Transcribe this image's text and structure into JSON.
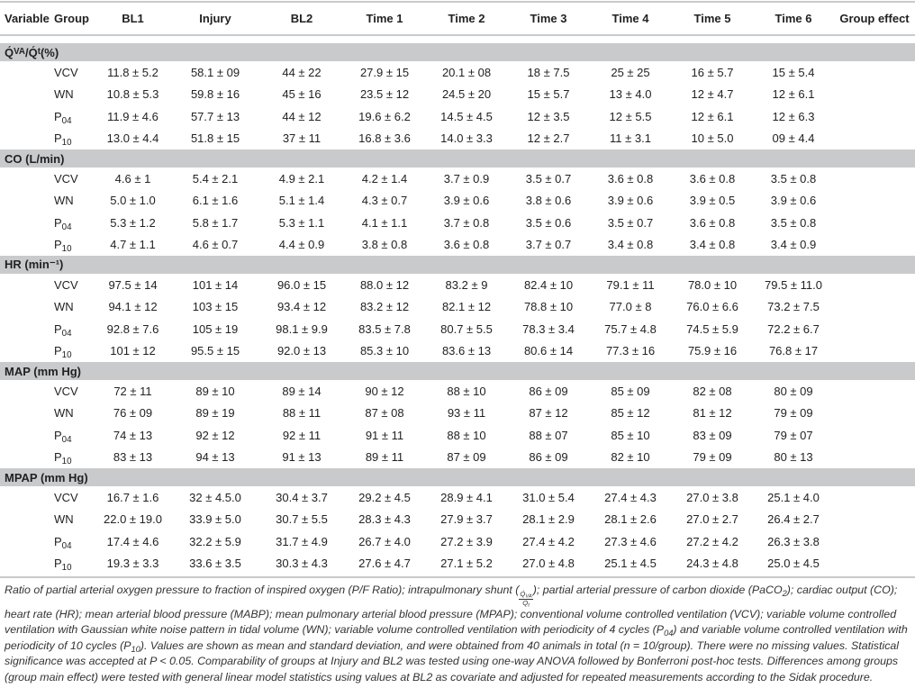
{
  "header": {
    "variable": "Variable",
    "group": "Group",
    "columns": [
      "BL1",
      "Injury",
      "BL2",
      "Time 1",
      "Time 2",
      "Time 3",
      "Time 4",
      "Time 5",
      "Time 6",
      "Group effect"
    ]
  },
  "section_band_color": "#c9cacc",
  "sections": [
    {
      "title": [
        {
          "t": "Q́"
        },
        {
          "sub": "VA"
        },
        {
          "t": "/Q́"
        },
        {
          "sub": "t"
        },
        {
          "t": " (%)"
        }
      ],
      "rows": [
        {
          "group": {
            "main": "VCV",
            "sub": ""
          },
          "values": [
            "11.8 ± 5.2",
            "58.1 ± 09",
            "44 ± 22",
            "27.9 ± 15",
            "20.1 ± 08",
            "18 ± 7.5",
            "25 ± 25",
            "16 ± 5.7",
            "15 ± 5.4",
            ""
          ]
        },
        {
          "group": {
            "main": "WN",
            "sub": ""
          },
          "values": [
            "10.8 ± 5.3",
            "59.8 ± 16",
            "45 ± 16",
            "23.5 ± 12",
            "24.5 ± 20",
            "15 ± 5.7",
            "13 ± 4.0",
            "12 ± 4.7",
            "12 ± 6.1",
            ""
          ]
        },
        {
          "group": {
            "main": "P",
            "sub": "04"
          },
          "values": [
            "11.9 ± 4.6",
            "57.7 ± 13",
            "44 ± 12",
            "19.6 ± 6.2",
            "14.5 ± 4.5",
            "12 ± 3.5",
            "12 ± 5.5",
            "12 ± 6.1",
            "12 ± 6.3",
            ""
          ]
        },
        {
          "group": {
            "main": "P",
            "sub": "10"
          },
          "values": [
            "13.0 ± 4.4",
            "51.8 ± 15",
            "37 ± 11",
            "16.8 ± 3.6",
            "14.0 ± 3.3",
            "12 ± 2.7",
            "11 ± 3.1",
            "10 ± 5.0",
            "09 ± 4.4",
            ""
          ]
        }
      ]
    },
    {
      "title": [
        {
          "t": "CO (L/min)"
        }
      ],
      "rows": [
        {
          "group": {
            "main": "VCV",
            "sub": ""
          },
          "values": [
            "4.6 ± 1",
            "5.4 ± 2.1",
            "4.9 ± 2.1",
            "4.2 ± 1.4",
            "3.7 ± 0.9",
            "3.5 ± 0.7",
            "3.6 ± 0.8",
            "3.6 ± 0.8",
            "3.5 ± 0.8",
            ""
          ]
        },
        {
          "group": {
            "main": "WN",
            "sub": ""
          },
          "values": [
            "5.0 ± 1.0",
            "6.1 ± 1.6",
            "5.1 ± 1.4",
            "4.3 ± 0.7",
            "3.9 ± 0.6",
            "3.8 ± 0.6",
            "3.9 ± 0.6",
            "3.9 ± 0.5",
            "3.9 ± 0.6",
            ""
          ]
        },
        {
          "group": {
            "main": "P",
            "sub": "04"
          },
          "values": [
            "5.3 ± 1.2",
            "5.8 ± 1.7",
            "5.3 ± 1.1",
            "4.1 ± 1.1",
            "3.7 ± 0.8",
            "3.5 ± 0.6",
            "3.5 ± 0.7",
            "3.6 ± 0.8",
            "3.5 ± 0.8",
            ""
          ]
        },
        {
          "group": {
            "main": "P",
            "sub": "10"
          },
          "values": [
            "4.7 ± 1.1",
            "4.6 ± 0.7",
            "4.4 ± 0.9",
            "3.8 ± 0.8",
            "3.6 ± 0.8",
            "3.7 ± 0.7",
            "3.4 ± 0.8",
            "3.4 ± 0.8",
            "3.4 ± 0.9",
            ""
          ]
        }
      ]
    },
    {
      "title": [
        {
          "t": "HR (min⁻¹)"
        }
      ],
      "rows": [
        {
          "group": {
            "main": "VCV",
            "sub": ""
          },
          "values": [
            "97.5 ± 14",
            "101 ± 14",
            "96.0 ± 15",
            "88.0 ± 12",
            "83.2 ± 9",
            "82.4 ± 10",
            "79.1 ± 11",
            "78.0 ± 10",
            "79.5 ± 11.0",
            ""
          ]
        },
        {
          "group": {
            "main": "WN",
            "sub": ""
          },
          "values": [
            "94.1 ± 12",
            "103 ± 15",
            "93.4 ± 12",
            "83.2 ± 12",
            "82.1 ± 12",
            "78.8 ± 10",
            "77.0 ± 8",
            "76.0 ± 6.6",
            "73.2 ± 7.5",
            ""
          ]
        },
        {
          "group": {
            "main": "P",
            "sub": "04"
          },
          "values": [
            "92.8 ± 7.6",
            "105 ± 19",
            "98.1 ± 9.9",
            "83.5 ± 7.8",
            "80.7 ± 5.5",
            "78.3 ± 3.4",
            "75.7 ± 4.8",
            "74.5 ± 5.9",
            "72.2 ± 6.7",
            ""
          ]
        },
        {
          "group": {
            "main": "P",
            "sub": "10"
          },
          "values": [
            "101 ± 12",
            "95.5 ± 15",
            "92.0 ± 13",
            "85.3 ± 10",
            "83.6 ± 13",
            "80.6 ± 14",
            "77.3 ± 16",
            "75.9 ± 16",
            "76.8 ± 17",
            ""
          ]
        }
      ]
    },
    {
      "title": [
        {
          "t": "MAP (mm Hg)"
        }
      ],
      "rows": [
        {
          "group": {
            "main": "VCV",
            "sub": ""
          },
          "values": [
            "72 ± 11",
            "89 ± 10",
            "89 ± 14",
            "90 ± 12",
            "88 ± 10",
            "86 ± 09",
            "85 ± 09",
            "82 ± 08",
            "80 ± 09",
            ""
          ]
        },
        {
          "group": {
            "main": "WN",
            "sub": ""
          },
          "values": [
            "76 ± 09",
            "89 ± 19",
            "88 ± 11",
            "87 ± 08",
            "93 ± 11",
            "87 ± 12",
            "85 ± 12",
            "81 ± 12",
            "79 ± 09",
            ""
          ]
        },
        {
          "group": {
            "main": "P",
            "sub": "04"
          },
          "values": [
            "74 ± 13",
            "92 ± 12",
            "92 ± 11",
            "91 ± 11",
            "88 ± 10",
            "88 ± 07",
            "85 ± 10",
            "83 ± 09",
            "79 ± 07",
            ""
          ]
        },
        {
          "group": {
            "main": "P",
            "sub": "10"
          },
          "values": [
            "83 ± 13",
            "94 ± 13",
            "91 ± 13",
            "89 ± 11",
            "87 ± 09",
            "86 ± 09",
            "82 ± 10",
            "79 ± 09",
            "80 ± 13",
            ""
          ]
        }
      ]
    },
    {
      "title": [
        {
          "t": "MPAP (mm Hg)"
        }
      ],
      "rows": [
        {
          "group": {
            "main": "VCV",
            "sub": ""
          },
          "values": [
            "16.7 ± 1.6",
            "32 ± 4.5.0",
            "30.4 ± 3.7",
            "29.2 ± 4.5",
            "28.9 ± 4.1",
            "31.0 ± 5.4",
            "27.4 ± 4.3",
            "27.0 ± 3.8",
            "25.1 ± 4.0",
            ""
          ]
        },
        {
          "group": {
            "main": "WN",
            "sub": ""
          },
          "values": [
            "22.0 ± 19.0",
            "33.9 ± 5.0",
            "30.7 ± 5.5",
            "28.3 ± 4.3",
            "27.9 ± 3.7",
            "28.1 ± 2.9",
            "28.1 ± 2.6",
            "27.0 ± 2.7",
            "26.4 ± 2.7",
            ""
          ]
        },
        {
          "group": {
            "main": "P",
            "sub": "04"
          },
          "values": [
            "17.4 ± 4.6",
            "32.2 ± 5.9",
            "31.7 ± 4.9",
            "26.7 ± 4.0",
            "27.2 ± 3.9",
            "27.4 ± 4.2",
            "27.3 ± 4.6",
            "27.2 ± 4.2",
            "26.3 ± 3.8",
            ""
          ]
        },
        {
          "group": {
            "main": "P",
            "sub": "10"
          },
          "values": [
            "19.3 ± 3.3",
            "33.6 ± 3.5",
            "30.3 ± 4.3",
            "27.6 ± 4.7",
            "27.1 ± 5.2",
            "27.0 ± 4.8",
            "25.1 ± 4.5",
            "24.3 ± 4.8",
            "25.0 ± 4.5",
            ""
          ]
        }
      ]
    }
  ],
  "caption": [
    [
      {
        "t": "Ratio of partial arterial oxygen pressure to fraction of inspired oxygen (P/F Ratio); intrapulmonary shunt ("
      },
      {
        "frac": {
          "num": "Q́",
          "num_sub": "VA",
          "den": "Q́",
          "den_sub": "t"
        }
      },
      {
        "t": "); partial arterial pressure of carbon dioxide (PaCO"
      },
      {
        "sub": "2"
      },
      {
        "t": "); cardiac output (CO);"
      }
    ],
    [
      {
        "t": "heart rate (HR); mean arterial blood pressure (MABP); mean pulmonary arterial blood pressure (MPAP); conventional volume controlled ventilation (VCV); variable volume controlled"
      }
    ],
    [
      {
        "t": "ventilation with Gaussian white noise pattern in tidal volume (WN); variable volume controlled ventilation with periodicity of 4 cycles (P"
      },
      {
        "sub": "04"
      },
      {
        "t": ") and variable volume controlled ventilation with"
      }
    ],
    [
      {
        "t": "periodicity of 10 cycles (P"
      },
      {
        "sub": "10"
      },
      {
        "t": "). Values are shown as mean and standard deviation, and were obtained from 40 animals in total (n = 10/group). There were no missing values. Statistical"
      }
    ],
    [
      {
        "t": "significance was accepted at P < 0.05. Comparability of groups at Injury and BL2 was tested using one-way ANOVA followed by Bonferroni post-hoc tests. Differences among groups"
      }
    ],
    [
      {
        "t": "(group main effect) were tested with general linear model statistics using values at BL2 as covariate and adjusted for repeated measurements according to the Sidak procedure."
      }
    ]
  ]
}
